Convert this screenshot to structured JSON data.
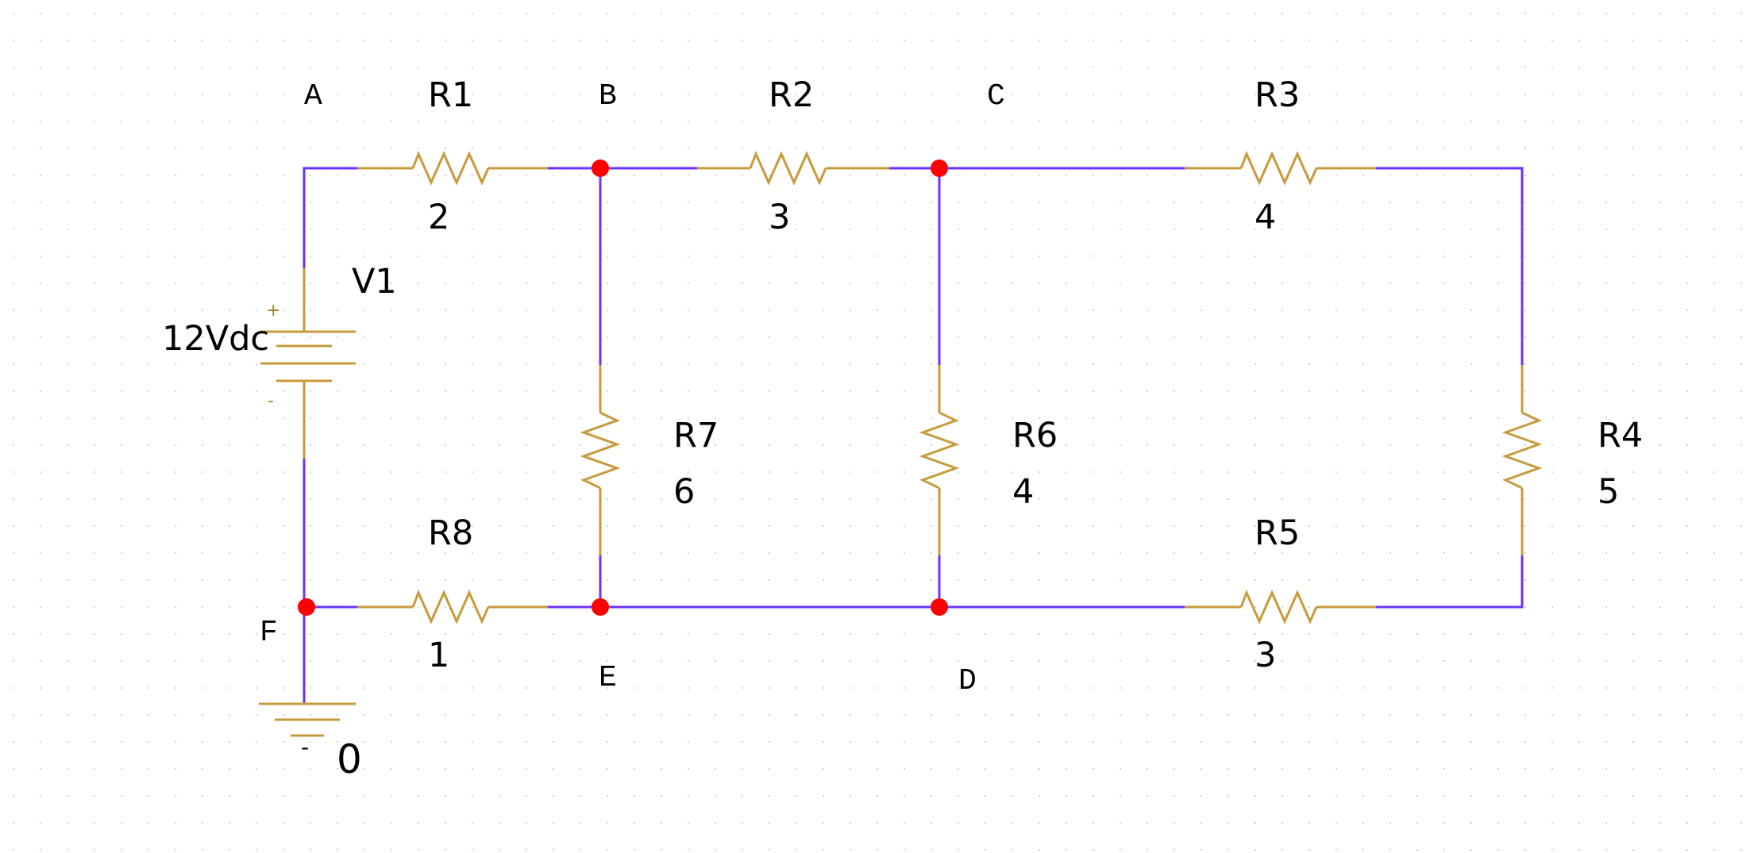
{
  "nodes": {
    "A": "A",
    "B": "B",
    "C": "C",
    "D": "D",
    "E": "E",
    "F": "F"
  },
  "source": {
    "name": "V1",
    "value": "12Vdc",
    "plus": "+",
    "minus": "-"
  },
  "ground": {
    "label": "0",
    "sign": "-"
  },
  "resistors": {
    "R1": {
      "name": "R1",
      "value": "2"
    },
    "R2": {
      "name": "R2",
      "value": "3"
    },
    "R3": {
      "name": "R3",
      "value": "4"
    },
    "R4": {
      "name": "R4",
      "value": "5"
    },
    "R5": {
      "name": "R5",
      "value": "3"
    },
    "R6": {
      "name": "R6",
      "value": "4"
    },
    "R7": {
      "name": "R7",
      "value": "6"
    },
    "R8": {
      "name": "R8",
      "value": "1"
    }
  },
  "colors": {
    "wire": "#6b33ff",
    "component": "#c79a3c",
    "junction": "#ff0000",
    "grid_dot": "#d4d4d4"
  }
}
